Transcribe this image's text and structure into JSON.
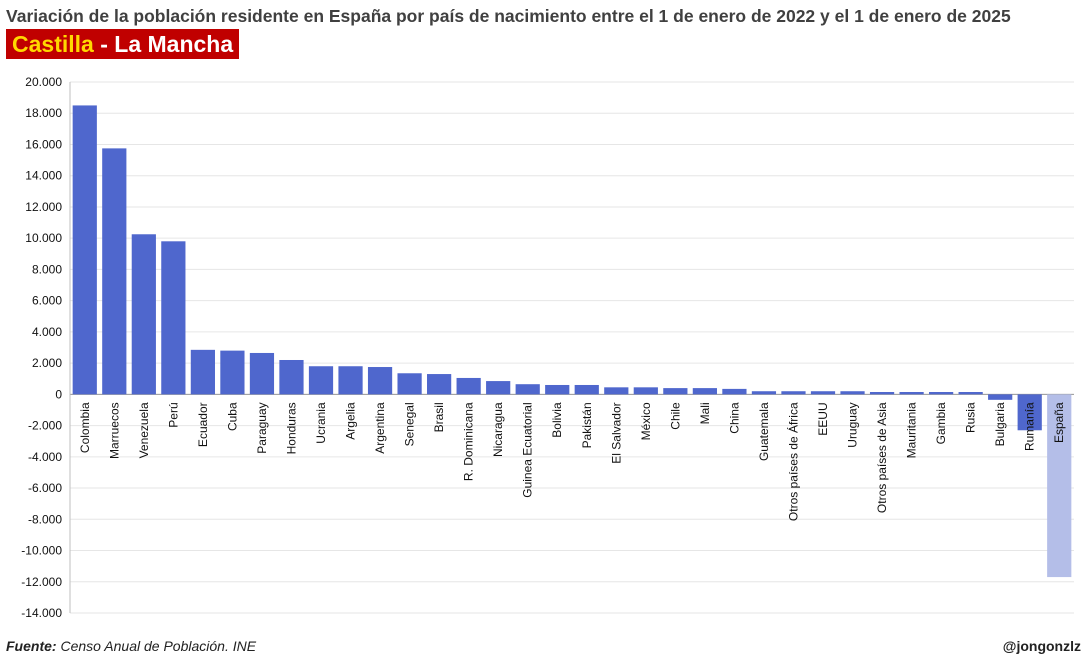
{
  "title": "Variación de la población residente en España por país de nacimiento entre el 1 de enero de 2022 y el 1 de enero de 2025",
  "region": {
    "part1": "Castilla",
    "sep": " - ",
    "part2": "La Mancha",
    "bg_color": "#c00000",
    "part1_color": "#ffd700"
  },
  "footer": {
    "source_label": "Fuente:",
    "source_text": "Censo Anual de Población. INE",
    "author": "@jongonzlz"
  },
  "chart_data": {
    "type": "bar",
    "ylim": [
      -14000,
      20000
    ],
    "ytick_step": 2000,
    "ytick_labels": [
      "20.000",
      "18.000",
      "16.000",
      "14.000",
      "12.000",
      "10.000",
      "8.000",
      "6.000",
      "4.000",
      "2.000",
      "0",
      "-2.000",
      "-4.000",
      "-6.000",
      "-8.000",
      "-10.000",
      "-12.000",
      "-14.000"
    ],
    "grid": true,
    "bar_color": "#4f67cd",
    "highlight_color": "#b4bee8",
    "categories": [
      "Colombia",
      "Marruecos",
      "Venezuela",
      "Perú",
      "Ecuador",
      "Cuba",
      "Paraguay",
      "Honduras",
      "Ucrania",
      "Argelia",
      "Argentina",
      "Senegal",
      "Brasil",
      "R. Dominicana",
      "Nicaragua",
      "Guinea Ecuatorial",
      "Bolivia",
      "Pakistán",
      "El Salvador",
      "México",
      "Chile",
      "Mali",
      "China",
      "Guatemala",
      "Otros países de África",
      "EEUU",
      "Uruguay",
      "Otros países de Asia",
      "Mauritania",
      "Gambia",
      "Rusia",
      "Bulgaria",
      "Rumanía",
      "España"
    ],
    "values": [
      18500,
      15750,
      10250,
      9800,
      2850,
      2800,
      2650,
      2200,
      1800,
      1800,
      1750,
      1350,
      1300,
      1050,
      850,
      650,
      600,
      600,
      450,
      450,
      400,
      400,
      350,
      200,
      200,
      200,
      200,
      150,
      150,
      150,
      150,
      -350,
      -2300,
      -11700
    ],
    "highlight_index": 33
  }
}
